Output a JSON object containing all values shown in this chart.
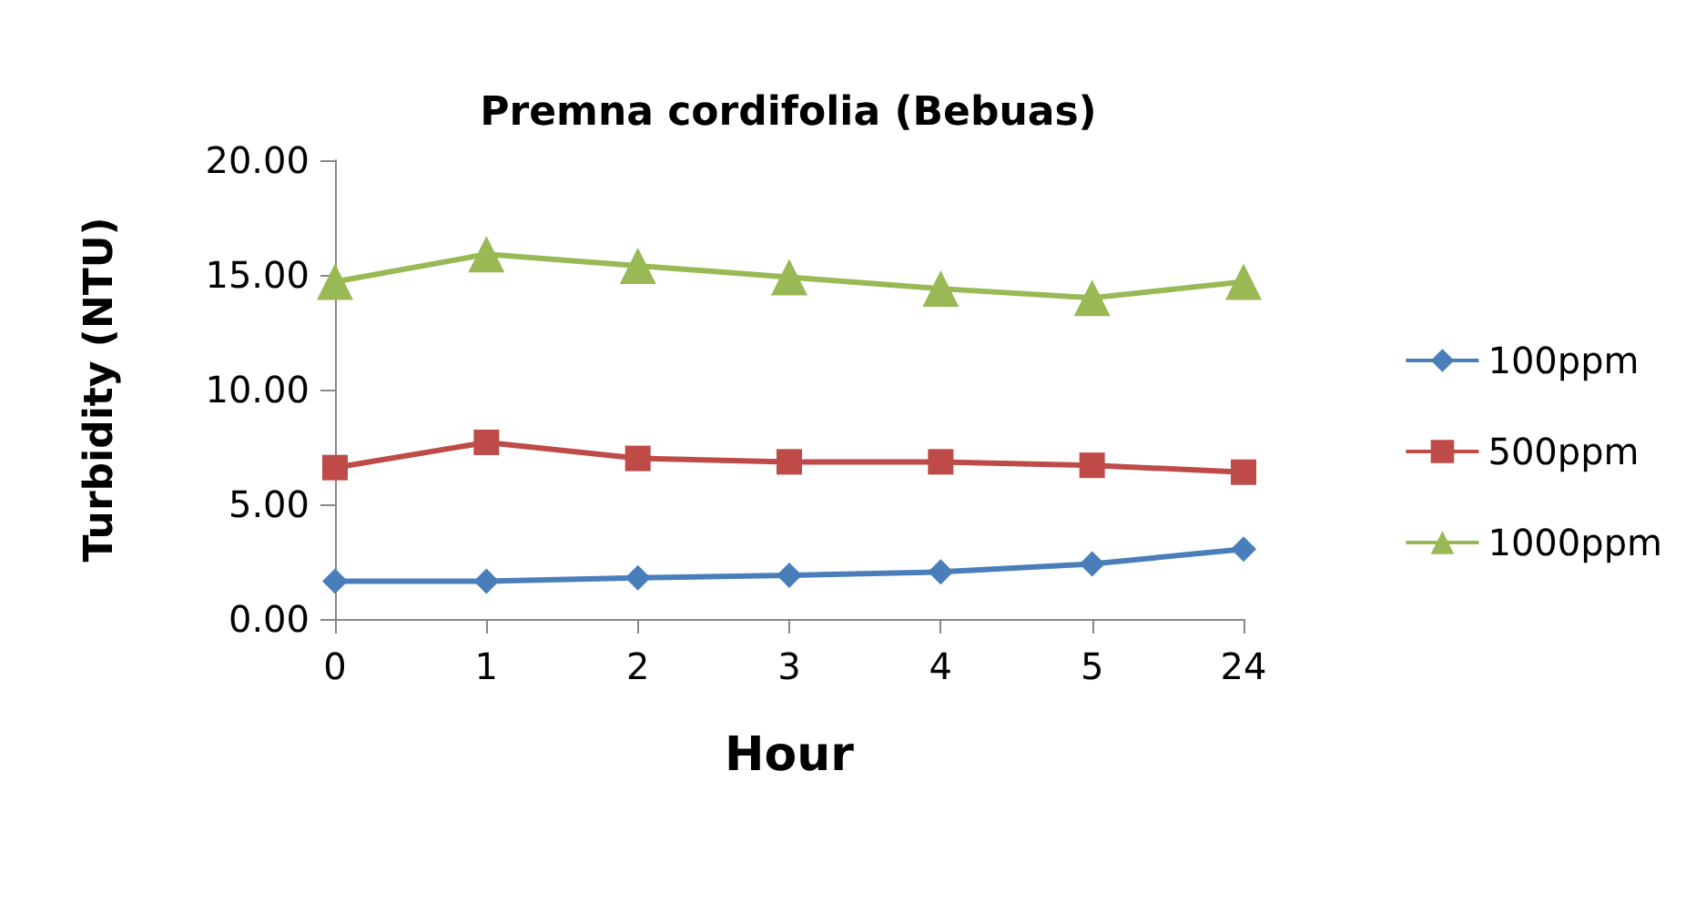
{
  "chart_data": {
    "type": "line",
    "title": "Premna cordifolia (Bebuas)",
    "xlabel": "Hour",
    "ylabel": "Turbidity (NTU)",
    "categories": [
      "0",
      "1",
      "2",
      "3",
      "4",
      "5",
      "24"
    ],
    "series": [
      {
        "name": "100ppm",
        "color": "#4a7ebb",
        "marker": "diamond",
        "values": [
          1.65,
          1.65,
          1.8,
          1.9,
          2.05,
          2.4,
          3.05
        ]
      },
      {
        "name": "500ppm",
        "color": "#be4b48",
        "marker": "square",
        "values": [
          6.6,
          7.7,
          7.0,
          6.85,
          6.85,
          6.7,
          6.4
        ]
      },
      {
        "name": "1000ppm",
        "color": "#98b954",
        "marker": "triangle",
        "values": [
          14.7,
          15.9,
          15.4,
          14.9,
          14.4,
          14.0,
          14.7
        ]
      }
    ],
    "ylim": [
      0,
      20
    ],
    "yticks": [
      {
        "value": 0,
        "label": "0.00"
      },
      {
        "value": 5,
        "label": "5.00"
      },
      {
        "value": 10,
        "label": "10.00"
      },
      {
        "value": 15,
        "label": "15.00"
      },
      {
        "value": 20,
        "label": "20.00"
      }
    ],
    "grid": false,
    "legend": "right"
  }
}
